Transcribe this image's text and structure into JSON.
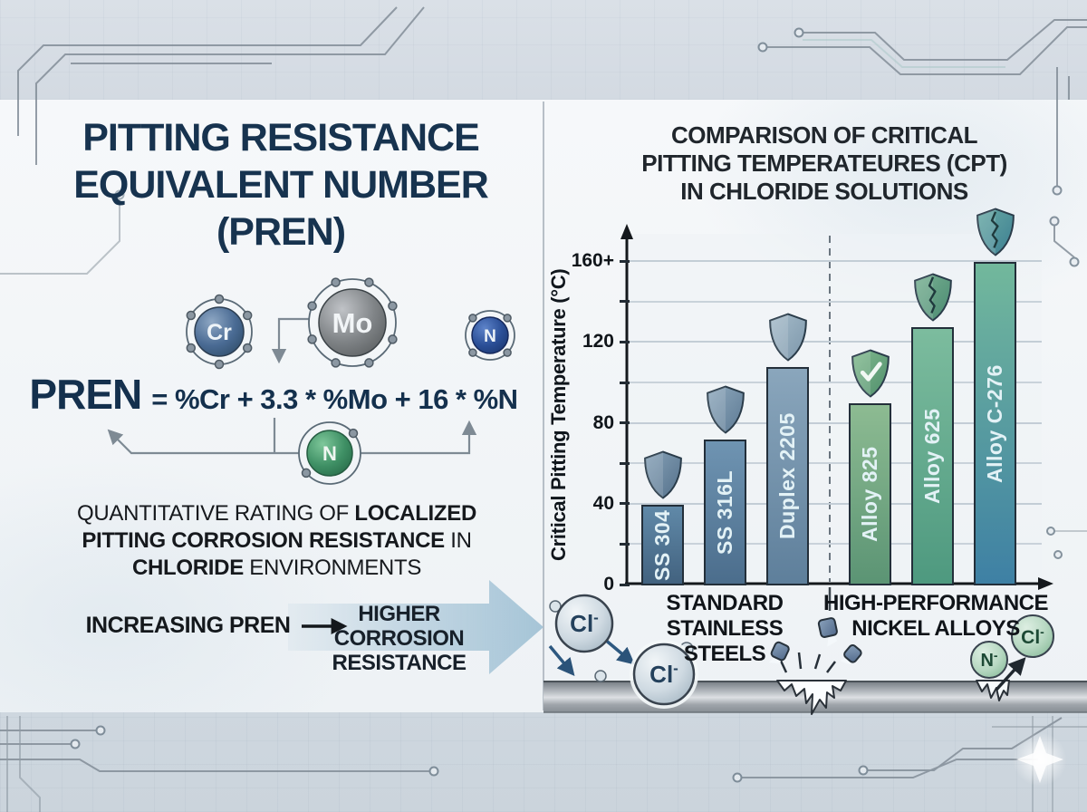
{
  "left_panel": {
    "title_lines": [
      "PITTING RESISTANCE",
      "EQUIVALENT NUMBER",
      "(PREN)"
    ],
    "atoms": [
      {
        "symbol": "Cr",
        "color": "#4a6b94"
      },
      {
        "symbol": "Mo",
        "color": "#7e8386"
      },
      {
        "symbol": "N",
        "color": "#2b4f97"
      },
      {
        "symbol": "N",
        "color": "#3f9065"
      }
    ],
    "formula": {
      "lhs": "PREN",
      "rhs": "= %Cr + 3.3 * %Mo + 16 * %N"
    },
    "description_segments": [
      {
        "text": "QUANTITATIVE RATING OF ",
        "bold": false
      },
      {
        "text": "LOCALIZED PITTING CORROSION RESISTANCE",
        "bold": true
      },
      {
        "text": " IN ",
        "bold": false
      },
      {
        "text": "CHLORIDE",
        "bold": true
      },
      {
        "text": " ENVIRONMENTS",
        "bold": false
      }
    ],
    "flow": {
      "left_label": "INCREASING PREN",
      "right_line1": "HIGHER CORROSION",
      "right_line2": "RESISTANCE",
      "arrow_color": "#9dbfd3"
    }
  },
  "right_panel": {
    "title_lines": [
      "COMPARISON OF CRITICAL",
      "PITTING TEMPERATEURES (CPT)",
      "IN CHLORIDE SOLUTIONS"
    ],
    "group_label_lines": [
      [
        "STANDARD",
        "STAINLESS STEELS"
      ],
      [
        "HIGH-PERFORMANCE",
        "NICKEL ALLOYS"
      ]
    ],
    "ions": [
      {
        "base": "Cl",
        "charge": "-",
        "style": "steel"
      },
      {
        "base": "Cl",
        "charge": "-",
        "style": "steel"
      },
      {
        "base": "N",
        "charge": "-",
        "style": "green"
      },
      {
        "base": "Cl",
        "charge": "-",
        "style": "green"
      }
    ],
    "metal_band_color": "#9aa1a8"
  },
  "chart_data": {
    "type": "bar",
    "title": "COMPARISON OF CRITICAL PITTING TEMPERATEURES (CPT) IN CHLORIDE SOLUTIONS",
    "ylabel": "Critical Pitting Temperature (°C)",
    "xlabel": "",
    "ylim": [
      0,
      170
    ],
    "grid": true,
    "legend": "none",
    "ytick_values": [
      0,
      40,
      80,
      120,
      160
    ],
    "ytick_labels": [
      "0",
      "40",
      "80",
      "120",
      "160+"
    ],
    "minor_tick_values": [
      20,
      60,
      100,
      140
    ],
    "categories": [
      "SS 304",
      "SS 316L",
      "Duplex 2205",
      "Alloy 825",
      "Alloy 625",
      "Alloy C-276"
    ],
    "values": [
      40,
      72,
      108,
      90,
      128,
      160
    ],
    "group_of_bars": [
      0,
      0,
      0,
      1,
      1,
      1
    ],
    "groups": [
      "STANDARD STAINLESS STEELS",
      "HIGH-PERFORMANCE NICKEL ALLOYS"
    ],
    "bar_gradients": [
      [
        "#6089a8",
        "#42627f"
      ],
      [
        "#6f94b2",
        "#4b6d8c"
      ],
      [
        "#8aa6bc",
        "#5e7f9b"
      ],
      [
        "#8dbb92",
        "#5b9474"
      ],
      [
        "#7cbc9e",
        "#4e997f"
      ],
      [
        "#72b89c",
        "#3e80a4"
      ]
    ],
    "bar_label_color": "#e3f2f6",
    "shields": [
      {
        "type": "plain",
        "colors": [
          "#87a2b8",
          "#54708a"
        ]
      },
      {
        "type": "plain",
        "colors": [
          "#8fa9bd",
          "#5d7a94"
        ]
      },
      {
        "type": "plain",
        "colors": [
          "#a6bcca",
          "#7d97ab"
        ]
      },
      {
        "type": "check",
        "colors": [
          "#83bb8f",
          "#4f8e6c"
        ]
      },
      {
        "type": "crack",
        "colors": [
          "#79b193",
          "#4a8a71"
        ]
      },
      {
        "type": "crack",
        "colors": [
          "#68a9a4",
          "#3d7f92"
        ]
      }
    ]
  }
}
